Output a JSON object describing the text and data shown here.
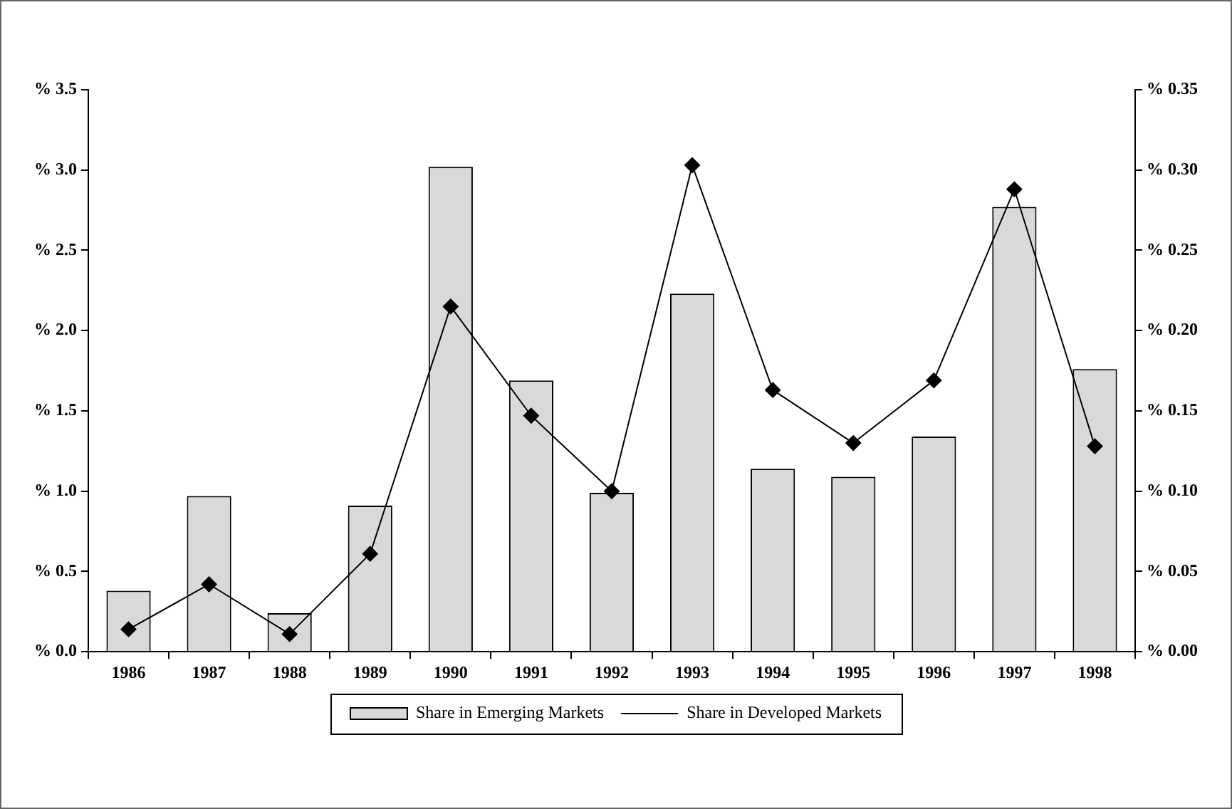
{
  "chart_data": {
    "type": "bar",
    "categories": [
      "1986",
      "1987",
      "1988",
      "1989",
      "1990",
      "1991",
      "1992",
      "1993",
      "1994",
      "1995",
      "1996",
      "1997",
      "1998"
    ],
    "series": [
      {
        "name": "Share in Emerging Markets",
        "color": "#d9d9d9",
        "values": [
          0.38,
          0.97,
          0.24,
          0.91,
          3.02,
          1.69,
          0.99,
          2.23,
          1.14,
          1.09,
          1.34,
          2.77,
          1.76
        ]
      },
      {
        "name": "Share in Developed Markets",
        "type": "line",
        "axis": "y2",
        "color": "#000000",
        "marker": "diamond",
        "values": [
          0.014,
          0.042,
          0.011,
          0.061,
          0.215,
          0.147,
          0.1,
          0.303,
          0.163,
          0.13,
          0.169,
          0.288,
          0.128
        ]
      }
    ],
    "ylim": [
      0,
      3.5
    ],
    "yticks": [
      {
        "value": 0,
        "label": "% 0.0"
      },
      {
        "value": 0.5,
        "label": "% 0.5"
      },
      {
        "value": 1,
        "label": "% 1.0"
      },
      {
        "value": 1.5,
        "label": "% 1.5"
      },
      {
        "value": 2,
        "label": "% 2.0"
      },
      {
        "value": 2.5,
        "label": "% 2.5"
      },
      {
        "value": 3,
        "label": "% 3.0"
      },
      {
        "value": 3.5,
        "label": "% 3.5"
      }
    ],
    "y2lim": [
      0,
      0.35
    ],
    "y2ticks": [
      {
        "value": 0,
        "label": "% 0.00"
      },
      {
        "value": 0.05,
        "label": "% 0.05"
      },
      {
        "value": 0.1,
        "label": "% 0.10"
      },
      {
        "value": 0.15,
        "label": "% 0.15"
      },
      {
        "value": 0.2,
        "label": "% 0.20"
      },
      {
        "value": 0.25,
        "label": "% 0.25"
      },
      {
        "value": 0.3,
        "label": "% 0.30"
      },
      {
        "value": 0.35,
        "label": "% 0.35"
      }
    ],
    "grid": false,
    "legend": "bottom"
  }
}
